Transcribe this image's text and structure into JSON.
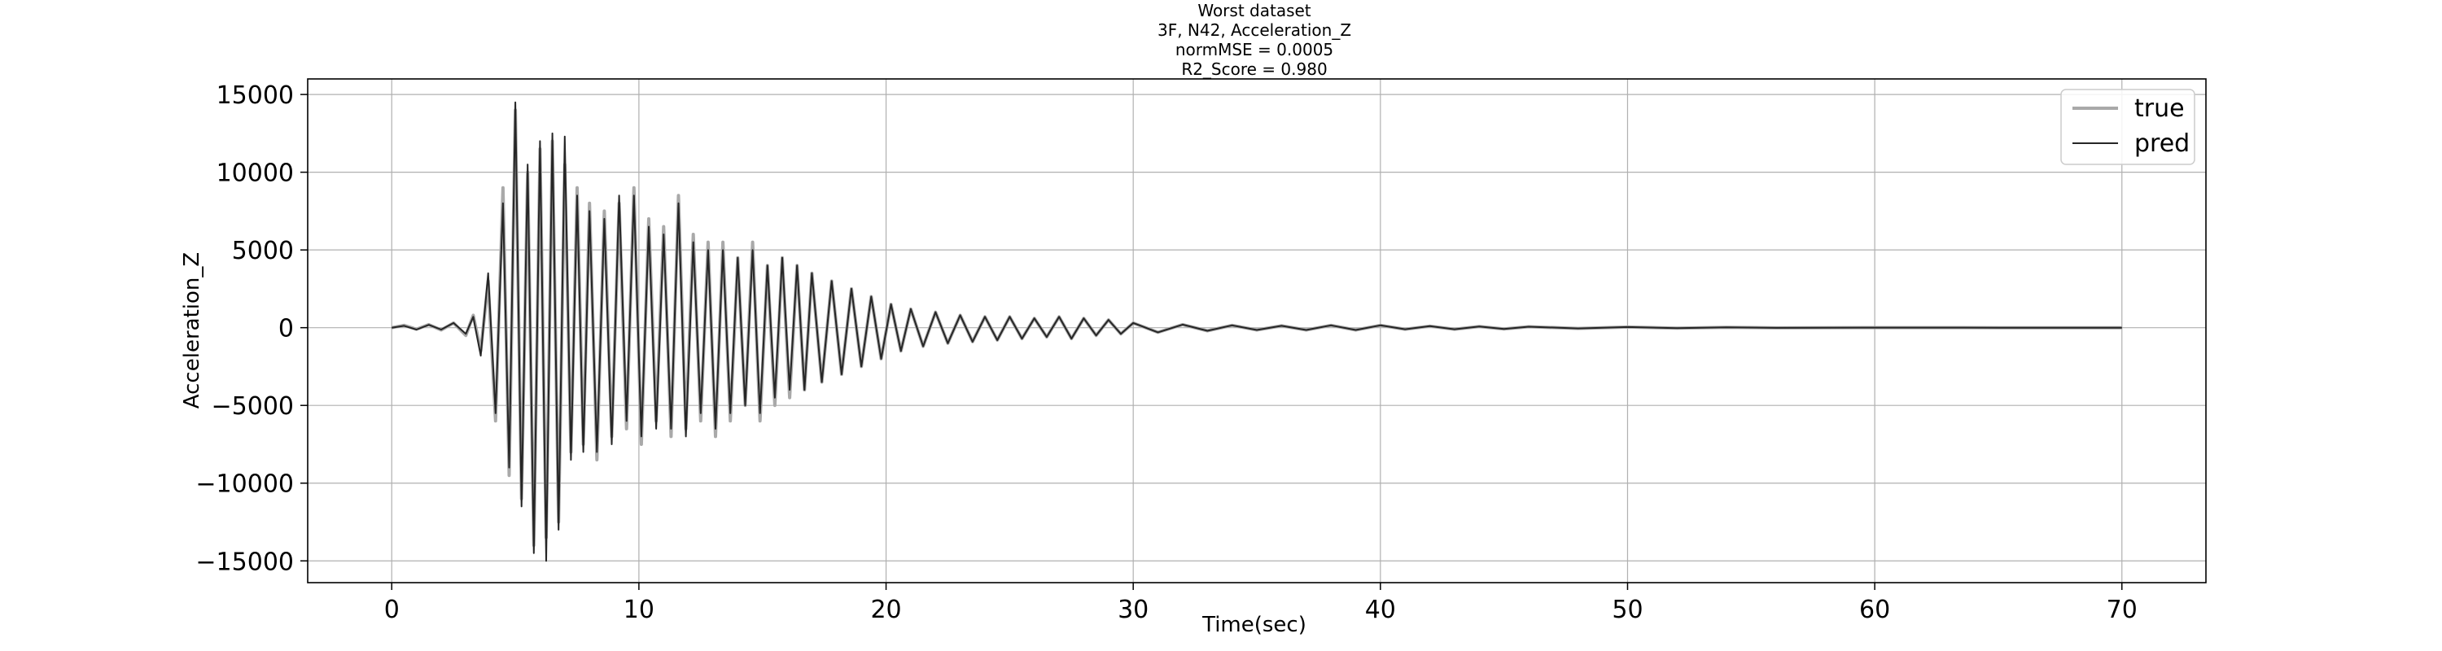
{
  "chart_data": {
    "type": "line",
    "title_lines": [
      "Worst dataset",
      "3F, N42, Acceleration_Z",
      "normMSE = 0.0005",
      "R2_Score = 0.980"
    ],
    "xlabel": "Time(sec)",
    "ylabel": "Acceleration_Z",
    "xlim": [
      -3.4,
      73.4
    ],
    "ylim": [
      -16400,
      16000
    ],
    "xticks": [
      0,
      10,
      20,
      30,
      40,
      50,
      60,
      70
    ],
    "yticks": [
      -15000,
      -10000,
      -5000,
      0,
      5000,
      10000,
      15000
    ],
    "xtick_labels": [
      "0",
      "10",
      "20",
      "30",
      "40",
      "50",
      "60",
      "70"
    ],
    "ytick_labels": [
      "−15000",
      "−10000",
      "−5000",
      "0",
      "5000",
      "10000",
      "15000"
    ],
    "grid": true,
    "legend_position": "top-right",
    "series": [
      {
        "name": "true",
        "color": "#a9a9a9",
        "x": [
          0,
          0.5,
          1.0,
          1.5,
          2.0,
          2.5,
          3.0,
          3.3,
          3.6,
          3.9,
          4.2,
          4.5,
          4.75,
          5.0,
          5.25,
          5.5,
          5.75,
          6.0,
          6.25,
          6.5,
          6.75,
          7.0,
          7.25,
          7.5,
          7.75,
          8.0,
          8.3,
          8.6,
          8.9,
          9.2,
          9.5,
          9.8,
          10.1,
          10.4,
          10.7,
          11.0,
          11.3,
          11.6,
          11.9,
          12.2,
          12.5,
          12.8,
          13.1,
          13.4,
          13.7,
          14.0,
          14.3,
          14.6,
          14.9,
          15.2,
          15.5,
          15.8,
          16.1,
          16.4,
          16.7,
          17.0,
          17.4,
          17.8,
          18.2,
          18.6,
          19.0,
          19.4,
          19.8,
          20.2,
          20.6,
          21.0,
          21.5,
          22.0,
          22.5,
          23.0,
          23.5,
          24.0,
          24.5,
          25.0,
          25.5,
          26.0,
          26.5,
          27.0,
          27.5,
          28.0,
          28.5,
          29.0,
          29.5,
          30.0,
          31.0,
          32.0,
          33.0,
          34.0,
          35.0,
          36.0,
          37.0,
          38.0,
          39.0,
          40.0,
          41.0,
          42.0,
          43.0,
          44.0,
          45.0,
          46.0,
          48.0,
          50.0,
          52.0,
          54.0,
          56.0,
          60.0,
          65.0,
          70.0
        ],
        "y": [
          0,
          150,
          -100,
          200,
          -150,
          300,
          -500,
          800,
          -1500,
          3000,
          -6000,
          9000,
          -9500,
          14000,
          -11000,
          10000,
          -14000,
          11500,
          -13500,
          12000,
          -12500,
          10500,
          -8000,
          9000,
          -7500,
          8000,
          -8500,
          7500,
          -7000,
          8000,
          -6500,
          9000,
          -7500,
          7000,
          -6000,
          6500,
          -7000,
          8500,
          -6500,
          6000,
          -6000,
          5500,
          -7000,
          5500,
          -6000,
          4500,
          -5000,
          5500,
          -6000,
          4000,
          -5000,
          4500,
          -4500,
          4000,
          -4000,
          3500,
          -3500,
          3000,
          -3000,
          2500,
          -2500,
          2000,
          -2000,
          1500,
          -1500,
          1200,
          -1200,
          1000,
          -1000,
          800,
          -900,
          700,
          -800,
          700,
          -700,
          600,
          -600,
          700,
          -700,
          600,
          -500,
          500,
          -400,
          300,
          -300,
          200,
          -200,
          150,
          -150,
          120,
          -150,
          150,
          -150,
          150,
          -100,
          100,
          -100,
          80,
          -80,
          60,
          -50,
          40,
          -30,
          20,
          -10,
          5,
          0,
          0
        ]
      },
      {
        "name": "pred",
        "color": "#262626",
        "x": [
          0,
          0.5,
          1.0,
          1.5,
          2.0,
          2.5,
          3.0,
          3.3,
          3.6,
          3.9,
          4.2,
          4.5,
          4.75,
          5.0,
          5.25,
          5.5,
          5.75,
          6.0,
          6.25,
          6.5,
          6.75,
          7.0,
          7.25,
          7.5,
          7.75,
          8.0,
          8.3,
          8.6,
          8.9,
          9.2,
          9.5,
          9.8,
          10.1,
          10.4,
          10.7,
          11.0,
          11.3,
          11.6,
          11.9,
          12.2,
          12.5,
          12.8,
          13.1,
          13.4,
          13.7,
          14.0,
          14.3,
          14.6,
          14.9,
          15.2,
          15.5,
          15.8,
          16.1,
          16.4,
          16.7,
          17.0,
          17.4,
          17.8,
          18.2,
          18.6,
          19.0,
          19.4,
          19.8,
          20.2,
          20.6,
          21.0,
          21.5,
          22.0,
          22.5,
          23.0,
          23.5,
          24.0,
          24.5,
          25.0,
          25.5,
          26.0,
          26.5,
          27.0,
          27.5,
          28.0,
          28.5,
          29.0,
          29.5,
          30.0,
          31.0,
          32.0,
          33.0,
          34.0,
          35.0,
          36.0,
          37.0,
          38.0,
          39.0,
          40.0,
          41.0,
          42.0,
          43.0,
          44.0,
          45.0,
          46.0,
          48.0,
          50.0,
          52.0,
          54.0,
          56.0,
          60.0,
          65.0,
          70.0
        ],
        "y": [
          0,
          120,
          -120,
          180,
          -120,
          300,
          -400,
          700,
          -1800,
          3500,
          -5500,
          8000,
          -9000,
          14500,
          -11500,
          10500,
          -14500,
          12000,
          -15000,
          12500,
          -13000,
          12300,
          -8500,
          8500,
          -8000,
          7500,
          -8000,
          7000,
          -7500,
          8500,
          -6000,
          8500,
          -7000,
          6500,
          -6500,
          6000,
          -6500,
          8000,
          -7000,
          5500,
          -5500,
          5000,
          -6500,
          5000,
          -5500,
          4500,
          -5000,
          5000,
          -5500,
          4000,
          -4500,
          4500,
          -4000,
          4000,
          -4000,
          3500,
          -3500,
          3000,
          -3000,
          2500,
          -2500,
          2000,
          -2000,
          1500,
          -1500,
          1200,
          -1200,
          1000,
          -1000,
          800,
          -900,
          700,
          -800,
          700,
          -700,
          600,
          -600,
          700,
          -700,
          600,
          -500,
          500,
          -400,
          300,
          -300,
          200,
          -200,
          150,
          -150,
          120,
          -150,
          150,
          -150,
          150,
          -100,
          100,
          -100,
          80,
          -80,
          60,
          -50,
          40,
          -30,
          20,
          -10,
          5,
          0,
          0
        ]
      }
    ]
  }
}
